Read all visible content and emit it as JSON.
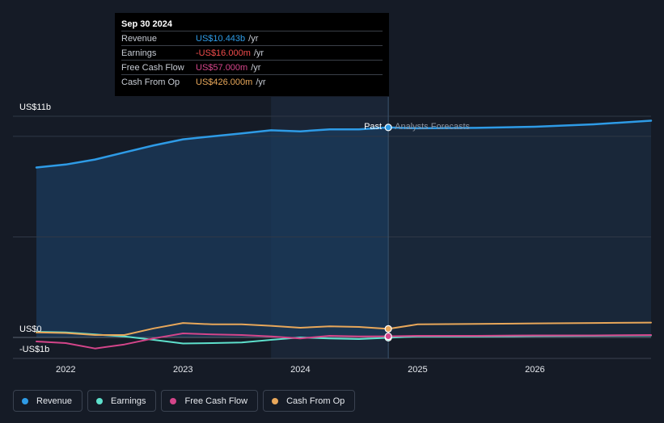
{
  "chart_data": {
    "type": "line",
    "units": "USD billions",
    "ylim": [
      -1,
      11
    ],
    "y_labels": {
      "top": "US$11b",
      "zero": "US$0",
      "bottom": "-US$1b"
    },
    "x_ticks": [
      "2022",
      "2023",
      "2024",
      "2025",
      "2026"
    ],
    "x_tick_values": [
      2022,
      2023,
      2024,
      2025,
      2026
    ],
    "xlim": [
      2021.55,
      2026.99
    ],
    "divider_x": 2024.75,
    "past_label": "Past",
    "forecast_label": "Analysts Forecasts",
    "series": [
      {
        "name": "Revenue",
        "color": "#2e9be6",
        "area": true,
        "x": [
          2021.75,
          2022.0,
          2022.25,
          2022.5,
          2022.75,
          2023.0,
          2023.25,
          2023.5,
          2023.75,
          2024.0,
          2024.25,
          2024.5,
          2024.75,
          2025.0,
          2025.5,
          2026.0,
          2026.5,
          2026.99
        ],
        "values": [
          8.45,
          8.6,
          8.85,
          9.2,
          9.55,
          9.85,
          10.0,
          10.15,
          10.3,
          10.25,
          10.35,
          10.35,
          10.443,
          10.4,
          10.42,
          10.48,
          10.6,
          10.78
        ]
      },
      {
        "name": "Earnings",
        "color": "#5ee0cc",
        "x": [
          2021.75,
          2022.0,
          2022.25,
          2022.5,
          2022.75,
          2023.0,
          2023.25,
          2023.5,
          2023.75,
          2024.0,
          2024.25,
          2024.5,
          2024.75,
          2025.0,
          2025.5,
          2026.0,
          2026.5,
          2026.99
        ],
        "values": [
          0.28,
          0.25,
          0.15,
          0.05,
          -0.12,
          -0.3,
          -0.28,
          -0.25,
          -0.12,
          0.0,
          -0.05,
          -0.08,
          -0.016,
          0.05,
          0.05,
          0.07,
          0.08,
          0.1
        ]
      },
      {
        "name": "Free Cash Flow",
        "color": "#d4458a",
        "x": [
          2021.75,
          2022.0,
          2022.25,
          2022.5,
          2022.75,
          2023.0,
          2023.25,
          2023.5,
          2023.75,
          2024.0,
          2024.25,
          2024.5,
          2024.75,
          2025.0,
          2025.5,
          2026.0,
          2026.5,
          2026.99
        ],
        "values": [
          -0.2,
          -0.28,
          -0.55,
          -0.35,
          -0.05,
          0.2,
          0.15,
          0.12,
          0.05,
          -0.05,
          0.08,
          0.05,
          0.057,
          0.08,
          0.08,
          0.1,
          0.1,
          0.12
        ]
      },
      {
        "name": "Cash From Op",
        "color": "#e8a75a",
        "x": [
          2021.75,
          2022.0,
          2022.25,
          2022.5,
          2022.75,
          2023.0,
          2023.25,
          2023.5,
          2023.75,
          2024.0,
          2024.25,
          2024.5,
          2024.75,
          2025.0,
          2025.5,
          2026.0,
          2026.5,
          2026.99
        ],
        "values": [
          0.25,
          0.22,
          0.12,
          0.12,
          0.45,
          0.72,
          0.65,
          0.65,
          0.58,
          0.48,
          0.55,
          0.52,
          0.426,
          0.65,
          0.67,
          0.7,
          0.72,
          0.74
        ]
      }
    ]
  },
  "tooltip": {
    "date": "Sep 30 2024",
    "rows": [
      {
        "name": "Revenue",
        "value": "US$10.443b",
        "unit": "/yr",
        "color": "#2e9be6"
      },
      {
        "name": "Earnings",
        "value": "-US$16.000m",
        "unit": "/yr",
        "color": "#f24c4c"
      },
      {
        "name": "Free Cash Flow",
        "value": "US$57.000m",
        "unit": "/yr",
        "color": "#d4458a"
      },
      {
        "name": "Cash From Op",
        "value": "US$426.000m",
        "unit": "/yr",
        "color": "#e8a75a"
      }
    ]
  },
  "legend": [
    {
      "label": "Revenue",
      "color": "#2e9be6"
    },
    {
      "label": "Earnings",
      "color": "#5ee0cc"
    },
    {
      "label": "Free Cash Flow",
      "color": "#d4458a"
    },
    {
      "label": "Cash From Op",
      "color": "#e8a75a"
    }
  ]
}
